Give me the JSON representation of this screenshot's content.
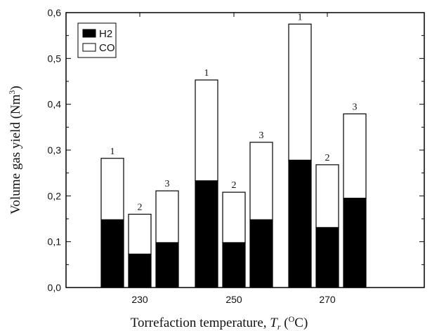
{
  "chart_data": {
    "type": "bar",
    "stacked": true,
    "categories": [
      "230",
      "250",
      "270"
    ],
    "groups": [
      "1",
      "2",
      "3"
    ],
    "series": [
      {
        "name": "H2",
        "color": "#000000",
        "values": [
          [
            0.148,
            0.073,
            0.098
          ],
          [
            0.233,
            0.098,
            0.148
          ],
          [
            0.278,
            0.131,
            0.195
          ]
        ]
      },
      {
        "name": "CO",
        "color": "#ffffff",
        "values": [
          [
            0.134,
            0.087,
            0.113
          ],
          [
            0.22,
            0.11,
            0.169
          ],
          [
            0.297,
            0.137,
            0.184
          ]
        ]
      }
    ],
    "totals": [
      [
        0.282,
        0.16,
        0.211
      ],
      [
        0.453,
        0.208,
        0.317
      ],
      [
        0.575,
        0.268,
        0.379
      ]
    ],
    "xlabel_text": "Torrefaction temperature, ",
    "xlabel_symbol": "T",
    "xlabel_sub": "r",
    "xlabel_unit_open": " (",
    "xlabel_unit_sup": "O",
    "xlabel_unit_close": "C)",
    "ylabel_text": "Volume gas yield (Nm",
    "ylabel_sup": "3",
    "ylabel_close": ")",
    "ylim": [
      0,
      0.6
    ],
    "yticks": [
      "0,0",
      "0,1",
      "0,2",
      "0,3",
      "0,4",
      "0,5",
      "0,6"
    ],
    "legend_position": "top-left",
    "grid": false
  }
}
